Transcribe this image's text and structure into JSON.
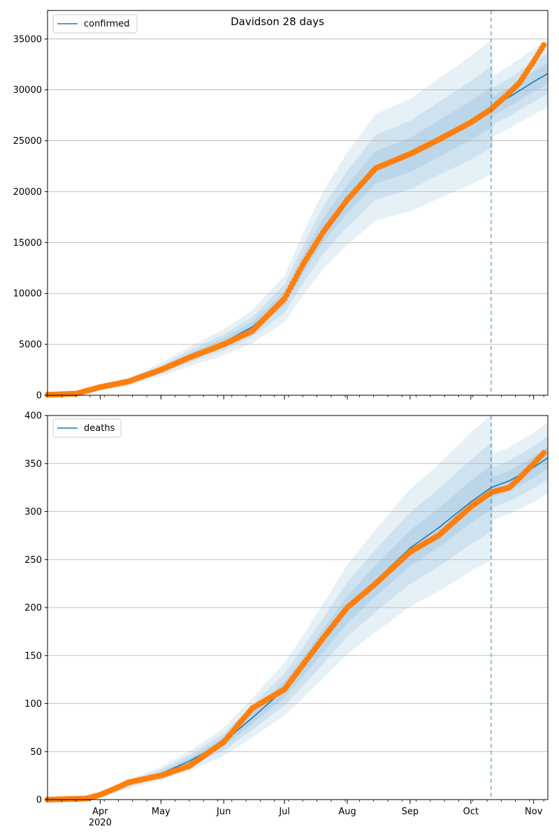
{
  "title": "Davidson 28 days",
  "x_tick_labels": [
    "Apr",
    "May",
    "Jun",
    "Jul",
    "Aug",
    "Sep",
    "Oct",
    "Nov"
  ],
  "x_year_label": "2020",
  "colors": {
    "model": "#1f77b4",
    "observed": "#ff7f0e",
    "band": "#1f77b4",
    "grid": "#b0b0b0",
    "forecast_line": "#1f77b4"
  },
  "chart_data": [
    {
      "type": "line",
      "name": "confirmed",
      "legend": "confirmed",
      "legend_position": "top-left",
      "xaxis": "dates 2020-03-06 to 2020-11-08",
      "ylim": [
        0,
        37800
      ],
      "yticks": [
        0,
        5000,
        10000,
        15000,
        20000,
        25000,
        30000,
        35000
      ],
      "grid": "horizontal",
      "forecast_start": "2020-10-11",
      "observed_x": [
        "2020-03-06",
        "2020-03-20",
        "2020-04-01",
        "2020-04-15",
        "2020-05-01",
        "2020-05-15",
        "2020-06-01",
        "2020-06-15",
        "2020-07-01",
        "2020-07-10",
        "2020-07-20",
        "2020-08-01",
        "2020-08-15",
        "2020-09-01",
        "2020-09-15",
        "2020-10-01",
        "2020-10-11",
        "2020-10-20",
        "2020-10-25",
        "2020-11-01",
        "2020-11-06"
      ],
      "observed_y": [
        50,
        150,
        800,
        1350,
        2500,
        3700,
        5000,
        6300,
        9500,
        12800,
        16000,
        19200,
        22300,
        23700,
        25100,
        26800,
        28100,
        29700,
        30700,
        32800,
        34400
      ],
      "model_x": [
        "2020-03-06",
        "2020-03-20",
        "2020-04-01",
        "2020-04-15",
        "2020-05-01",
        "2020-05-15",
        "2020-06-01",
        "2020-06-15",
        "2020-07-01",
        "2020-07-10",
        "2020-07-20",
        "2020-08-01",
        "2020-08-15",
        "2020-09-01",
        "2020-09-15",
        "2020-10-01",
        "2020-10-11",
        "2020-10-20",
        "2020-11-01",
        "2020-11-08"
      ],
      "model_y": [
        50,
        150,
        750,
        1350,
        2500,
        3800,
        5200,
        6700,
        9500,
        12800,
        16200,
        19300,
        22400,
        23600,
        25200,
        27000,
        28300,
        29300,
        30800,
        31600
      ],
      "band_spread": [
        0.07,
        0.14,
        0.23
      ]
    },
    {
      "type": "line",
      "name": "deaths",
      "legend": "deaths",
      "legend_position": "top-left",
      "xaxis": "dates 2020-03-06 to 2020-11-08",
      "ylim": [
        0,
        400
      ],
      "yticks": [
        0,
        50,
        100,
        150,
        200,
        250,
        300,
        350,
        400
      ],
      "grid": "horizontal",
      "forecast_start": "2020-10-11",
      "observed_x": [
        "2020-03-06",
        "2020-03-25",
        "2020-04-01",
        "2020-04-10",
        "2020-04-15",
        "2020-05-01",
        "2020-05-15",
        "2020-06-01",
        "2020-06-15",
        "2020-07-01",
        "2020-07-10",
        "2020-07-20",
        "2020-08-01",
        "2020-08-15",
        "2020-09-01",
        "2020-09-15",
        "2020-10-01",
        "2020-10-11",
        "2020-10-20",
        "2020-10-25",
        "2020-11-01",
        "2020-11-06"
      ],
      "observed_y": [
        0,
        1,
        5,
        13,
        18,
        25,
        35,
        60,
        95,
        115,
        140,
        168,
        200,
        225,
        258,
        275,
        305,
        320,
        325,
        335,
        350,
        361
      ],
      "model_x": [
        "2020-03-06",
        "2020-03-25",
        "2020-04-01",
        "2020-04-15",
        "2020-05-01",
        "2020-05-15",
        "2020-06-01",
        "2020-06-15",
        "2020-07-01",
        "2020-07-10",
        "2020-07-20",
        "2020-08-01",
        "2020-08-15",
        "2020-09-01",
        "2020-09-15",
        "2020-10-01",
        "2020-10-11",
        "2020-10-20",
        "2020-11-01",
        "2020-11-08"
      ],
      "model_y": [
        0,
        1,
        5,
        16,
        27,
        40,
        60,
        85,
        115,
        138,
        165,
        198,
        228,
        262,
        283,
        310,
        325,
        332,
        346,
        356
      ],
      "band_spread": [
        0.07,
        0.14,
        0.23
      ]
    }
  ]
}
